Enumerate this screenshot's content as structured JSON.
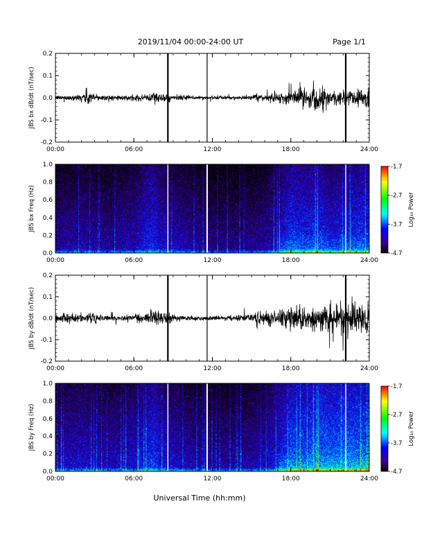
{
  "header": {
    "date_range": "2019/11/04  00:00-24:00 UT",
    "page": "Page 1/1"
  },
  "xaxis_label": "Universal Time (hh:mm)",
  "colorbar": {
    "label": "Log₁₀ Power",
    "ticks": [
      "-1.7",
      "-2.7",
      "-3.7",
      "-4.7"
    ],
    "colors": [
      "#ff0000",
      "#ffff00",
      "#00ff00",
      "#00ffff",
      "#0000ff",
      "#4000a0",
      "#000000"
    ]
  },
  "chart_data": [
    {
      "type": "line",
      "id": "bx-dbdt",
      "ylabel": "JBS bx dB/dt (nT/sec)",
      "xlim": [
        0,
        24
      ],
      "ylim": [
        -0.2,
        0.2
      ],
      "xticks": [
        "00:00",
        "06:00",
        "12:00",
        "18:00",
        "24:00"
      ],
      "yticks": [
        "0.2",
        "0.1",
        "0.0",
        "-0.1",
        "-0.2"
      ],
      "gaps_hours": [
        8.6,
        11.6,
        22.2
      ],
      "envelope_hours": [
        0,
        1,
        2,
        2.4,
        3,
        4,
        5,
        6,
        7,
        7.6,
        8,
        9,
        10,
        11,
        12,
        13,
        14,
        15,
        16,
        17,
        18,
        19,
        20,
        21,
        22,
        23,
        24
      ],
      "envelope_amplitude": [
        0.008,
        0.01,
        0.015,
        0.035,
        0.015,
        0.01,
        0.009,
        0.01,
        0.013,
        0.028,
        0.018,
        0.01,
        0.009,
        0.008,
        0.007,
        0.007,
        0.007,
        0.009,
        0.013,
        0.02,
        0.025,
        0.04,
        0.045,
        0.035,
        0.03,
        0.035,
        0.045
      ]
    },
    {
      "type": "heatmap",
      "id": "bx-spectrogram",
      "ylabel": "JBS bx Freq (Hz)",
      "xlim": [
        0,
        24
      ],
      "ylim": [
        0.0,
        1.0
      ],
      "xticks": [
        "00:00",
        "06:00",
        "12:00",
        "18:00",
        "24:00"
      ],
      "yticks": [
        "1.0",
        "0.8",
        "0.6",
        "0.4",
        "0.2",
        "0.0"
      ],
      "zlim": [
        -4.7,
        -1.7
      ],
      "gaps_hours": [
        8.6,
        11.6,
        22.2
      ]
    },
    {
      "type": "line",
      "id": "by-dbdt",
      "ylabel": "JBS by dB/dt (nT/sec)",
      "xlim": [
        0,
        24
      ],
      "ylim": [
        -0.2,
        0.2
      ],
      "xticks": [
        "00:00",
        "06:00",
        "12:00",
        "18:00",
        "24:00"
      ],
      "yticks": [
        "0.2",
        "0.1",
        "0.0",
        "-0.1",
        "-0.2"
      ],
      "gaps_hours": [
        8.6,
        11.6,
        22.2
      ],
      "envelope_hours": [
        0,
        1,
        2,
        3,
        4,
        5,
        6,
        7,
        7.6,
        8,
        9,
        10,
        11,
        12,
        13,
        14,
        15,
        16,
        17,
        18,
        19,
        20,
        21,
        22,
        23,
        24
      ],
      "envelope_amplitude": [
        0.015,
        0.018,
        0.02,
        0.018,
        0.015,
        0.013,
        0.014,
        0.02,
        0.04,
        0.025,
        0.013,
        0.01,
        0.01,
        0.009,
        0.01,
        0.012,
        0.02,
        0.03,
        0.035,
        0.045,
        0.05,
        0.055,
        0.06,
        0.06,
        0.065,
        0.08
      ]
    },
    {
      "type": "heatmap",
      "id": "by-spectrogram",
      "ylabel": "JBS by Freq (Hz)",
      "xlim": [
        0,
        24
      ],
      "ylim": [
        0.0,
        1.0
      ],
      "xticks": [
        "00:00",
        "06:00",
        "12:00",
        "18:00",
        "24:00"
      ],
      "yticks": [
        "1.0",
        "0.8",
        "0.6",
        "0.4",
        "0.2",
        "0.0"
      ],
      "zlim": [
        -4.7,
        -1.7
      ],
      "gaps_hours": [
        8.6,
        11.6,
        22.2
      ]
    }
  ]
}
